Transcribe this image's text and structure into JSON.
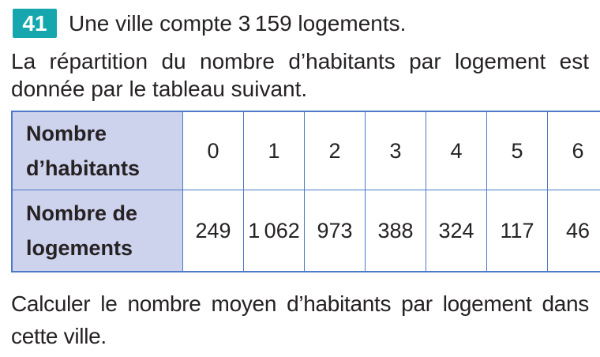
{
  "exercise": {
    "badge": "41",
    "intro_line1": "Une ville compte 3 159 logements.",
    "intro_line2a": "La répartition du nombre d’habitants par logement est",
    "intro_line2b": "donnée par le tableau suivant.",
    "question_line1": "Calculer le nombre moyen d’habitants par logement dans",
    "question_line2": "cette ville."
  },
  "table": {
    "row_headers": [
      "Nombre d’habitants",
      "Nombre de logements"
    ],
    "habitants": [
      "0",
      "1",
      "2",
      "3",
      "4",
      "5",
      "6"
    ],
    "logements": [
      "249",
      "1 062",
      "973",
      "388",
      "324",
      "117",
      "46"
    ]
  },
  "colors": {
    "badge_bg": "#15a7ad",
    "badge_text": "#ffffff",
    "table_border": "#4d79c6",
    "header_fill": "#cdd3ed",
    "text": "#262224",
    "page_bg": "#ffffff"
  }
}
